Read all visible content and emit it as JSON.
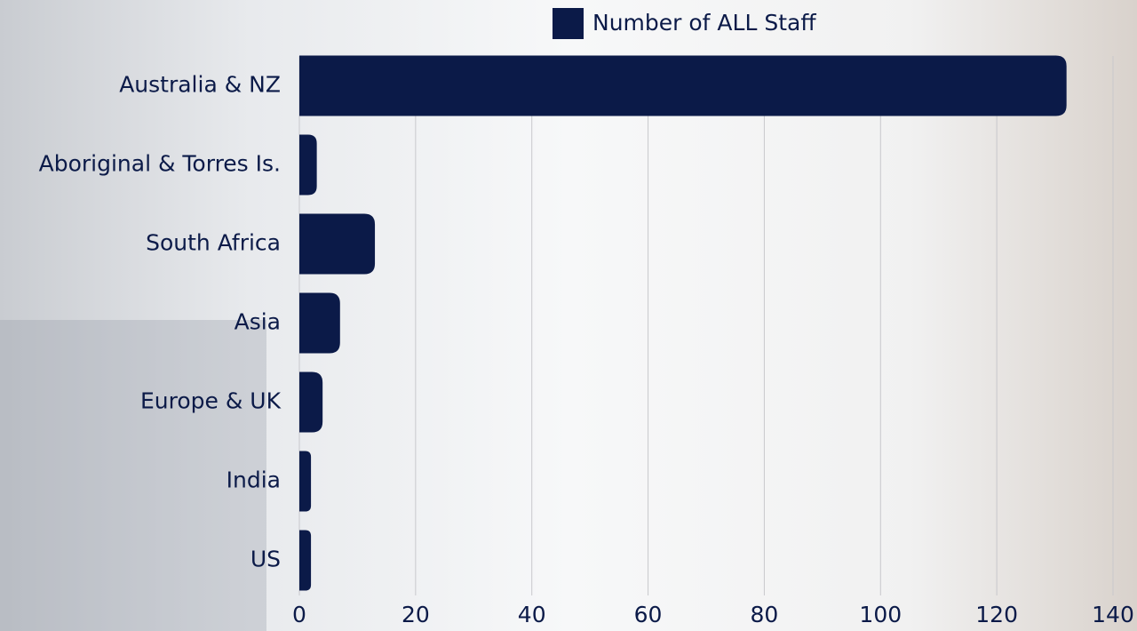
{
  "chart_data": {
    "type": "bar",
    "orientation": "horizontal",
    "categories": [
      "Australia & NZ",
      "Aboriginal & Torres Is.",
      "South Africa",
      "Asia",
      "Europe & UK",
      "India",
      "US"
    ],
    "series": [
      {
        "name": "Number of ALL Staff",
        "color": "#0b1a48",
        "values": [
          132,
          3,
          13,
          7,
          4,
          2,
          2
        ]
      }
    ],
    "xlim": [
      0,
      140
    ],
    "xticks": [
      0,
      20,
      40,
      60,
      80,
      100,
      120,
      140
    ],
    "grid": true,
    "legend": "top"
  }
}
